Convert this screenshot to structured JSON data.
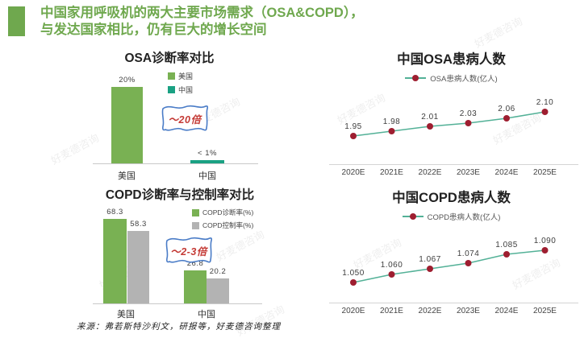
{
  "header": {
    "title_line1": "中国家用呼吸机的两大主要市场需求（OSA&COPD），",
    "title_line2": "与发达国家相比，仍有巨大的增长空间"
  },
  "watermark": {
    "text": "好麦德咨询"
  },
  "source": {
    "text": "来源：弗若斯特沙利文，研报等，好麦德咨询整理"
  },
  "colors": {
    "accent_green": "#6fa84e",
    "bar_green": "#79b153",
    "bar_teal": "#1aa183",
    "bar_gray": "#b3b3b3",
    "line_teal": "#53b197",
    "marker_red": "#9e1e30",
    "annotation_red": "#c43a35",
    "ribbon_blue": "#4a7cc7"
  },
  "chart_data": [
    {
      "id": "osa-diagnosis",
      "type": "bar",
      "title": "OSA诊断率对比",
      "categories": [
        "美国",
        "中国"
      ],
      "values": [
        20,
        0.8
      ],
      "value_labels": [
        "20%",
        "< 1%"
      ],
      "bar_colors": [
        "#79b153",
        "#1aa183"
      ],
      "legend": [
        {
          "label": "美国",
          "color": "#79b153"
        },
        {
          "label": "中国",
          "color": "#1aa183"
        }
      ],
      "annotation": "～20倍",
      "ylim": [
        0,
        21
      ],
      "unit": "%"
    },
    {
      "id": "copd-diagnosis-control",
      "type": "bar",
      "title": "COPD诊断率与控制率对比",
      "categories": [
        "美国",
        "中国"
      ],
      "series": [
        {
          "name": "COPD诊断率(%)",
          "color": "#79b153",
          "values": [
            68.3,
            26.8
          ],
          "value_labels": [
            "68.3",
            "26.8"
          ]
        },
        {
          "name": "COPD控制率(%)",
          "color": "#b3b3b3",
          "values": [
            58.3,
            20.2
          ],
          "value_labels": [
            "58.3",
            "20.2"
          ]
        }
      ],
      "annotation": "～2-3倍",
      "ylim": [
        0,
        80
      ]
    },
    {
      "id": "china-osa-patients",
      "type": "line",
      "title": "中国OSA患病人数",
      "legend": "OSA患病人数(亿人)",
      "categories": [
        "2020E",
        "2021E",
        "2022E",
        "2023E",
        "2024E",
        "2025E"
      ],
      "values": [
        1.95,
        1.98,
        2.01,
        2.03,
        2.06,
        2.1
      ],
      "value_labels": [
        "1.95",
        "1.98",
        "2.01",
        "2.03",
        "2.06",
        "2.10"
      ],
      "ylim": [
        1.8,
        2.2
      ],
      "ylabel": "亿人"
    },
    {
      "id": "china-copd-patients",
      "type": "line",
      "title": "中国COPD患病人数",
      "legend": "COPD患病人数(亿人)",
      "categories": [
        "2020E",
        "2021E",
        "2022E",
        "2023E",
        "2024E",
        "2025E"
      ],
      "values": [
        1.05,
        1.06,
        1.067,
        1.074,
        1.085,
        1.09
      ],
      "value_labels": [
        "1.050",
        "1.060",
        "1.067",
        "1.074",
        "1.085",
        "1.090"
      ],
      "ylim": [
        1.03,
        1.11
      ],
      "ylabel": "亿人"
    }
  ]
}
